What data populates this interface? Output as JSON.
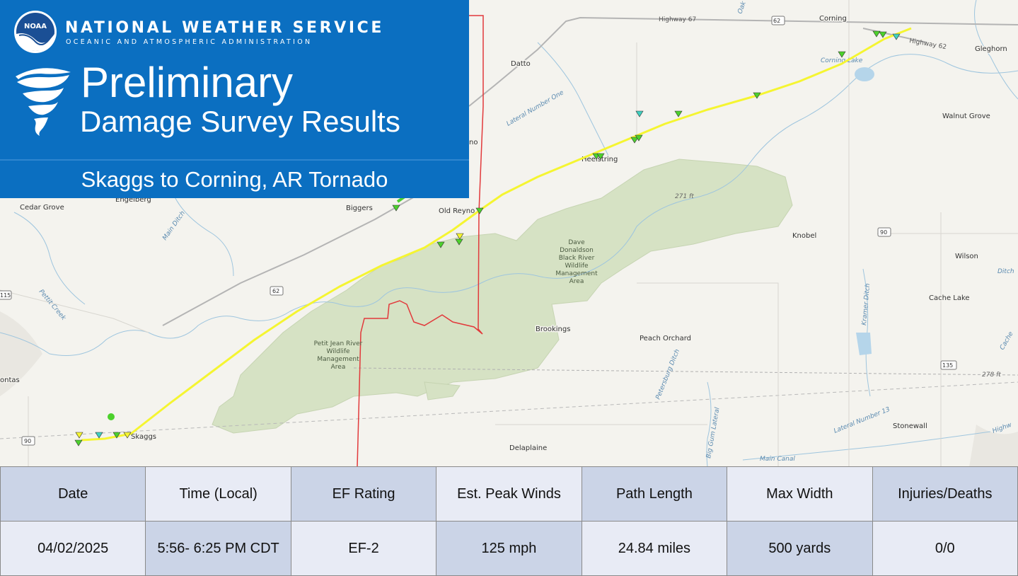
{
  "header": {
    "agency_name": "NATIONAL WEATHER SERVICE",
    "agency_subtitle": "OCEANIC AND ATMOSPHERIC ADMINISTRATION",
    "logo_text": "NOAA",
    "title_line1": "Preliminary",
    "title_line2": "Damage Survey Results",
    "event_name": "Skaggs to Corning, AR Tornado",
    "background_color": "#0b6fc1"
  },
  "map": {
    "track_color": "#f5f531",
    "county_line_color": "#e2393b",
    "places": [
      "Corning",
      "Datto",
      "Gleghorn",
      "Walnut Grove",
      "Knobel",
      "Wilson",
      "Cache Lake",
      "Peach Orchard",
      "Brookings",
      "Biggers",
      "Old Reyno",
      "Cedar Grove",
      "Engelberg",
      "Skaggs",
      "Delaplaine",
      "Stonewall",
      "Heelstring",
      "ontas",
      "no"
    ],
    "water_features": [
      "Corning Lake",
      "Lateral Number One",
      "Main Ditch",
      "Pettit Creek",
      "Oak Creek",
      "Kramer Ditch",
      "Petersburg Ditch",
      "Big Gum Lateral",
      "Lateral Number 13",
      "Main Canal",
      "Ditch",
      "Cache",
      "Highw"
    ],
    "highway_labels": [
      "Highway 67",
      "Highway 62"
    ],
    "route_shields": [
      "62",
      "62",
      "90",
      "90",
      "135",
      "115"
    ],
    "areas": [
      {
        "lines": [
          "Dave",
          "Donaldson",
          "Black River",
          "Wildlife",
          "Management",
          "Area"
        ]
      },
      {
        "lines": [
          "Petit Jean River",
          "Wildlife",
          "Management",
          "Area"
        ]
      }
    ],
    "elevations": [
      "271 ft",
      "278 ft"
    ]
  },
  "table": {
    "headers": [
      "Date",
      "Time (Local)",
      "EF Rating",
      "Est. Peak Winds",
      "Path Length",
      "Max Width",
      "Injuries/Deaths"
    ],
    "values": [
      "04/02/2025",
      "5:56- 6:25 PM CDT",
      "EF-2",
      "125 mph",
      "24.84 miles",
      "500 yards",
      "0/0"
    ],
    "colors": {
      "dark": "#cbd4e7",
      "light": "#e8ebf5"
    }
  }
}
